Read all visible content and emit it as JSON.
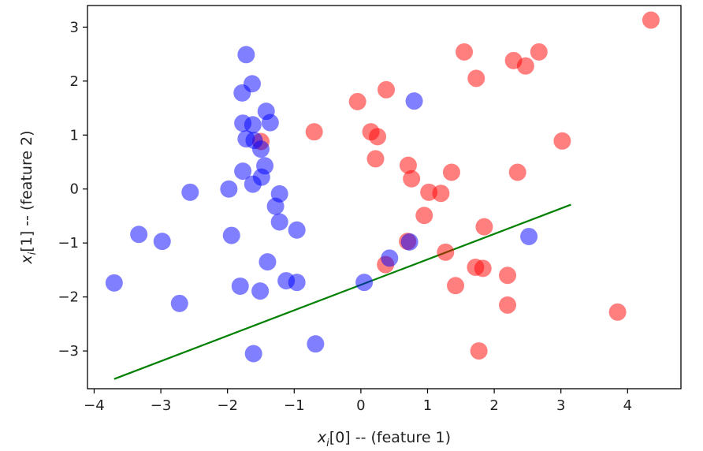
{
  "chart_data": {
    "type": "scatter",
    "xlabel": {
      "var": "x",
      "sub": "i",
      "rest": "[0] -- (feature 1)"
    },
    "ylabel": {
      "var": "x",
      "sub": "i",
      "rest": "[1] -- (feature 2)"
    },
    "xlim": [
      -4.1,
      4.8
    ],
    "ylim": [
      -3.7,
      3.4
    ],
    "xticks": [
      -4,
      -3,
      -2,
      -1,
      0,
      1,
      2,
      3,
      4
    ],
    "xtick_labels": [
      "−4",
      "−3",
      "−2",
      "−1",
      "0",
      "1",
      "2",
      "3",
      "4"
    ],
    "yticks": [
      -3,
      -2,
      -1,
      0,
      1,
      2,
      3
    ],
    "ytick_labels": [
      "−3",
      "−2",
      "−1",
      "0",
      "1",
      "2",
      "3"
    ],
    "grid": false,
    "series": [
      {
        "color": "#ff0000",
        "opacity": 0.5,
        "points": [
          [
            4.35,
            3.13
          ],
          [
            1.55,
            2.54
          ],
          [
            2.67,
            2.54
          ],
          [
            2.29,
            2.38
          ],
          [
            2.47,
            2.28
          ],
          [
            1.73,
            2.05
          ],
          [
            0.38,
            1.84
          ],
          [
            -0.05,
            1.62
          ],
          [
            -0.7,
            1.06
          ],
          [
            0.15,
            1.06
          ],
          [
            0.25,
            0.97
          ],
          [
            -1.5,
            0.88
          ],
          [
            3.02,
            0.89
          ],
          [
            0.22,
            0.56
          ],
          [
            0.71,
            0.44
          ],
          [
            1.36,
            0.31
          ],
          [
            2.35,
            0.31
          ],
          [
            0.76,
            0.19
          ],
          [
            1.02,
            -0.06
          ],
          [
            1.2,
            -0.08
          ],
          [
            0.95,
            -0.49
          ],
          [
            1.85,
            -0.7
          ],
          [
            0.7,
            -0.97
          ],
          [
            1.27,
            -1.17
          ],
          [
            0.37,
            -1.4
          ],
          [
            1.72,
            -1.45
          ],
          [
            1.83,
            -1.47
          ],
          [
            2.2,
            -1.6
          ],
          [
            1.42,
            -1.79
          ],
          [
            2.2,
            -2.15
          ],
          [
            3.85,
            -2.28
          ],
          [
            1.77,
            -3.0
          ]
        ]
      },
      {
        "color": "#0000ff",
        "opacity": 0.5,
        "points": [
          [
            -1.72,
            2.49
          ],
          [
            -1.63,
            1.95
          ],
          [
            -1.78,
            1.78
          ],
          [
            0.8,
            1.63
          ],
          [
            -1.42,
            1.44
          ],
          [
            -1.36,
            1.23
          ],
          [
            -1.77,
            1.22
          ],
          [
            -1.62,
            1.19
          ],
          [
            -1.72,
            0.93
          ],
          [
            -1.6,
            0.9
          ],
          [
            -1.5,
            0.74
          ],
          [
            -1.77,
            0.33
          ],
          [
            -1.44,
            0.43
          ],
          [
            -1.49,
            0.22
          ],
          [
            -1.62,
            0.09
          ],
          [
            -1.98,
            0.0
          ],
          [
            -2.56,
            -0.06
          ],
          [
            -1.22,
            -0.09
          ],
          [
            -1.28,
            -0.32
          ],
          [
            -1.22,
            -0.61
          ],
          [
            -3.33,
            -0.84
          ],
          [
            -2.98,
            -0.97
          ],
          [
            -1.94,
            -0.86
          ],
          [
            -0.96,
            -0.76
          ],
          [
            -1.4,
            -1.35
          ],
          [
            0.73,
            -0.98
          ],
          [
            0.43,
            -1.28
          ],
          [
            2.52,
            -0.88
          ],
          [
            -1.81,
            -1.8
          ],
          [
            -1.12,
            -1.7
          ],
          [
            -0.96,
            -1.73
          ],
          [
            0.05,
            -1.73
          ],
          [
            -1.51,
            -1.89
          ],
          [
            -3.7,
            -1.74
          ],
          [
            -2.72,
            -2.12
          ],
          [
            -0.68,
            -2.87
          ],
          [
            -1.61,
            -3.05
          ]
        ]
      }
    ],
    "line": {
      "color": "#008000",
      "points": [
        [
          -3.7,
          -3.52
        ],
        [
          3.15,
          -0.29
        ]
      ]
    }
  }
}
